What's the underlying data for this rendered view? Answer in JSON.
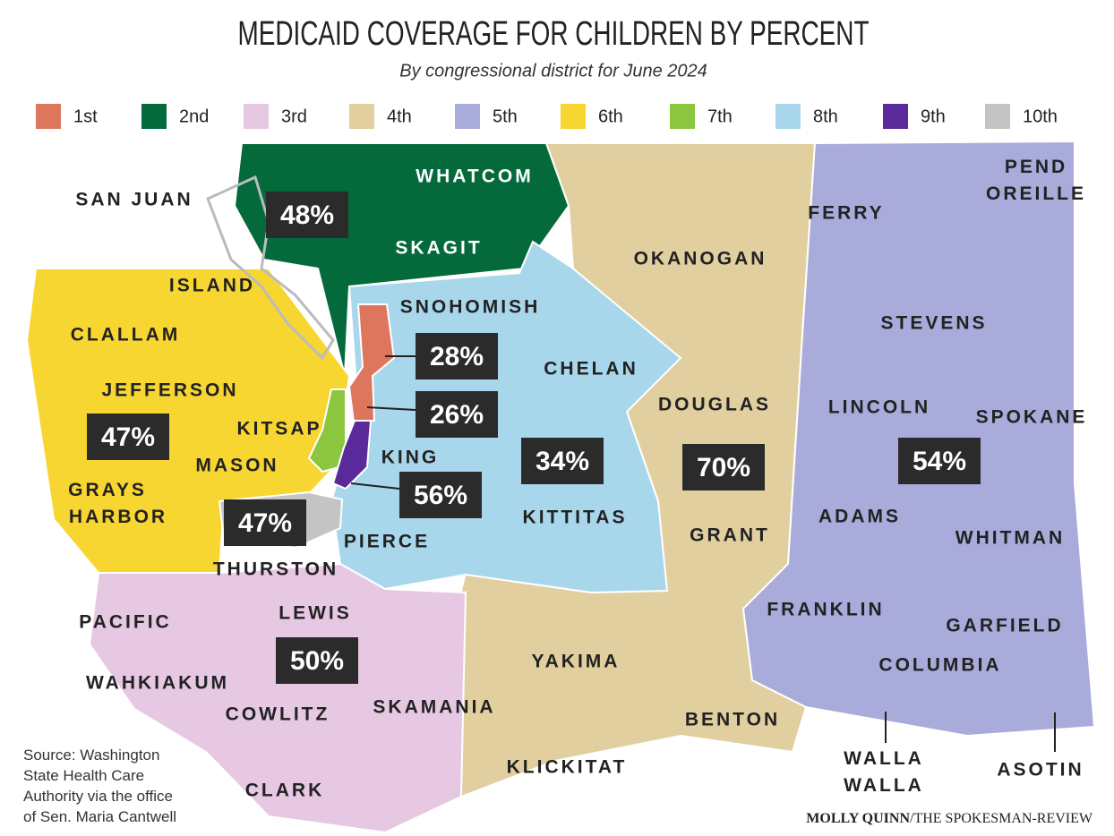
{
  "title": "MEDICAID COVERAGE FOR CHILDREN BY PERCENT",
  "subtitle": "By congressional district for June 2024",
  "districts": [
    {
      "name": "1st",
      "color": "#de765e",
      "label": "28%"
    },
    {
      "name": "2nd",
      "color": "#046a3c",
      "label": "48%"
    },
    {
      "name": "3rd",
      "color": "#e6c8e3",
      "label": "50%"
    },
    {
      "name": "4th",
      "color": "#e1cf9f",
      "label": "70%"
    },
    {
      "name": "5th",
      "color": "#a9abda",
      "label": "54%"
    },
    {
      "name": "6th",
      "color": "#f8d631",
      "label": "47%"
    },
    {
      "name": "7th",
      "color": "#8cc63f",
      "label": "26%"
    },
    {
      "name": "8th",
      "color": "#a8d7ec",
      "label": "34%"
    },
    {
      "name": "9th",
      "color": "#5a2a9a",
      "label": "56%"
    },
    {
      "name": "10th",
      "color": "#c4c4c4",
      "label": "47%"
    }
  ],
  "counties": [
    [
      "WHATCOM"
    ],
    [
      "SKAGIT"
    ],
    [
      "SAN JUAN"
    ],
    [
      "ISLAND"
    ],
    [
      "SNOHOMISH"
    ],
    [
      "CLALLAM"
    ],
    [
      "JEFFERSON"
    ],
    [
      "KITSAP"
    ],
    [
      "MASON"
    ],
    [
      "GRAYS",
      "HARBOR"
    ],
    [
      "KING"
    ],
    [
      "PIERCE"
    ],
    [
      "THURSTON"
    ],
    [
      "PACIFIC"
    ],
    [
      "LEWIS"
    ],
    [
      "WAHKIAKUM"
    ],
    [
      "COWLITZ"
    ],
    [
      "SKAMANIA"
    ],
    [
      "CLARK"
    ],
    [
      "CHELAN"
    ],
    [
      "KITTITAS"
    ],
    [
      "OKANOGAN"
    ],
    [
      "DOUGLAS"
    ],
    [
      "GRANT"
    ],
    [
      "YAKIMA"
    ],
    [
      "KLICKITAT"
    ],
    [
      "BENTON"
    ],
    [
      "FERRY"
    ],
    [
      "STEVENS"
    ],
    [
      "PEND",
      "OREILLE"
    ],
    [
      "LINCOLN"
    ],
    [
      "SPOKANE"
    ],
    [
      "ADAMS"
    ],
    [
      "WHITMAN"
    ],
    [
      "FRANKLIN"
    ],
    [
      "GARFIELD"
    ],
    [
      "COLUMBIA"
    ],
    [
      "WALLA",
      "WALLA"
    ],
    [
      "ASOTIN"
    ]
  ],
  "source": [
    "Source: Washington",
    "State Health Care",
    "Authority via the office",
    "of Sen. Maria Cantwell"
  ],
  "credit": {
    "author": "MOLLY QUINN",
    "outlet": "/THE SPOKESMAN-REVIEW"
  }
}
